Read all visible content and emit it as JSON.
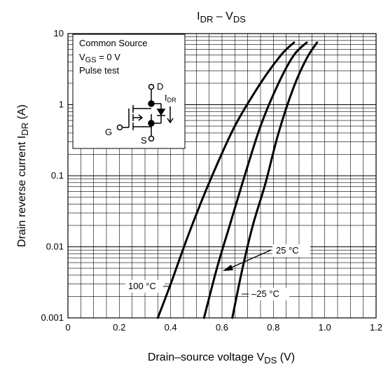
{
  "chart_data": {
    "type": "line",
    "title": {
      "main": "I",
      "main_sub": "DR",
      "sep": " – V",
      "sep_sub": "DS"
    },
    "xlabel": {
      "text": "Drain–source voltage   V",
      "sub": "DS",
      "unit": "   (V)"
    },
    "ylabel": {
      "text": "Drain reverse current   I",
      "sub": "DR",
      "unit": "   (A)"
    },
    "xlim": [
      0,
      1.2
    ],
    "ylim": [
      0.001,
      10
    ],
    "y_scale": "log",
    "grid": true,
    "x_ticks": [
      "0",
      "0.2",
      "0.4",
      "0.6",
      "0.8",
      "1.0",
      "1.2"
    ],
    "y_ticks": [
      "0.001",
      "0.01",
      "0.1",
      "1",
      "10"
    ],
    "series": [
      {
        "name": "100 °C",
        "x": [
          0.35,
          0.4,
          0.47,
          0.55,
          0.65,
          0.75,
          0.83,
          0.88
        ],
        "y": [
          0.001,
          0.003,
          0.015,
          0.08,
          0.5,
          2.0,
          5.0,
          7.5
        ]
      },
      {
        "name": "25 °C",
        "x": [
          0.53,
          0.58,
          0.63,
          0.68,
          0.75,
          0.82,
          0.88,
          0.93
        ],
        "y": [
          0.001,
          0.005,
          0.02,
          0.08,
          0.5,
          2.0,
          5.0,
          7.5
        ]
      },
      {
        "name": "–25 °C",
        "x": [
          0.64,
          0.68,
          0.72,
          0.77,
          0.82,
          0.88,
          0.93,
          0.97
        ],
        "y": [
          0.001,
          0.005,
          0.02,
          0.08,
          0.4,
          1.8,
          4.5,
          7.5
        ]
      }
    ],
    "annotations": {
      "label_100": "100 °C",
      "label_25": "25 °C",
      "label_m25": "–25 °C"
    },
    "conditions_box": {
      "line1": "Common Source",
      "line2_main": "V",
      "line2_sub": "GS",
      "line2_rest": " = 0 V",
      "line3": "Pulse test",
      "pin_d": "D",
      "pin_g": "G",
      "pin_s": "S",
      "idr_main": "I",
      "idr_sub": "DR"
    }
  }
}
